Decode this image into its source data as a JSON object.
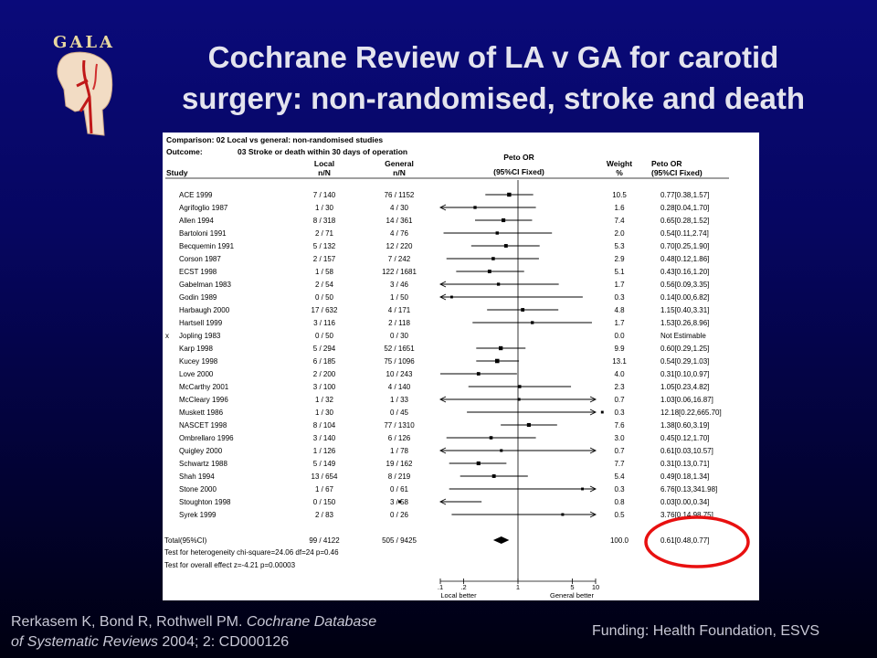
{
  "logo": {
    "text": "GALA"
  },
  "title": {
    "line1": "Cochrane Review of LA v GA for carotid",
    "line2": "surgery: non-randomised, stroke and death"
  },
  "colors": {
    "highlight": "#e81010",
    "title": "#e4e4ee",
    "footer": "#c8c8d6"
  },
  "table": {
    "comparison": "Comparison: 02 Local vs general:  non-randomised studies",
    "outcome_label": "Outcome:",
    "outcome": "03 Stroke or death within 30 days of operation",
    "headers": {
      "study": "Study",
      "local": "Local",
      "local_sub": "n/N",
      "general": "General",
      "general_sub": "n/N",
      "or": "Peto OR",
      "or_sub": "(95%CI Fixed)",
      "weight": "Weight",
      "weight_sub": "%",
      "or_ci": "Peto OR",
      "or_ci_sub": "(95%CI Fixed)"
    },
    "excluded_marker": "x",
    "total": {
      "label": "Total(95%CI)",
      "local": "99 / 4122",
      "general": "505 / 9425",
      "weight": "100.0",
      "ci": "0.61[0.48,0.77]",
      "heterogeneity": "Test for heterogeneity chi-square=24.06  df=24  p=0.46",
      "overall": "Test for overall effect  z=-4.21  p=0.00003"
    },
    "footer_left": "Local better",
    "footer_right": "General better"
  },
  "chart_data": {
    "type": "forest",
    "x_scale": "log",
    "xlim": [
      0.1,
      10
    ],
    "x_ticks": [
      ".1",
      ".2",
      "1",
      "5",
      "10"
    ],
    "x_tick_values": [
      0.1,
      0.2,
      1,
      5,
      10
    ],
    "reference_line": 1,
    "studies": [
      {
        "study": "ACE 1999",
        "local": "7 / 140",
        "general": "76 / 1152",
        "weight": "10.5",
        "ci": "0.77[0.38,1.57]",
        "or": 0.77,
        "lo": 0.38,
        "hi": 1.57
      },
      {
        "study": "Agrifoglio 1987",
        "local": "1 / 30",
        "general": "4 / 30",
        "weight": "1.6",
        "ci": "0.28[0.04,1.70]",
        "or": 0.28,
        "lo": 0.04,
        "hi": 1.7
      },
      {
        "study": "Allen 1994",
        "local": "8 / 318",
        "general": "14 / 361",
        "weight": "7.4",
        "ci": "0.65[0.28,1.52]",
        "or": 0.65,
        "lo": 0.28,
        "hi": 1.52
      },
      {
        "study": "Bartoloni 1991",
        "local": "2 / 71",
        "general": "4 / 76",
        "weight": "2.0",
        "ci": "0.54[0.11,2.74]",
        "or": 0.54,
        "lo": 0.11,
        "hi": 2.74
      },
      {
        "study": "Becquemin 1991",
        "local": "5 / 132",
        "general": "12 / 220",
        "weight": "5.3",
        "ci": "0.70[0.25,1.90]",
        "or": 0.7,
        "lo": 0.25,
        "hi": 1.9
      },
      {
        "study": "Corson 1987",
        "local": "2 / 157",
        "general": "7 / 242",
        "weight": "2.9",
        "ci": "0.48[0.12,1.86]",
        "or": 0.48,
        "lo": 0.12,
        "hi": 1.86
      },
      {
        "study": "ECST 1998",
        "local": "1 / 58",
        "general": "122 / 1681",
        "weight": "5.1",
        "ci": "0.43[0.16,1.20]",
        "or": 0.43,
        "lo": 0.16,
        "hi": 1.2
      },
      {
        "study": "Gabelman 1983",
        "local": "2 / 54",
        "general": "3 / 46",
        "weight": "1.7",
        "ci": "0.56[0.09,3.35]",
        "or": 0.56,
        "lo": 0.09,
        "hi": 3.35
      },
      {
        "study": "Godin 1989",
        "local": "0 / 50",
        "general": "1 / 50",
        "weight": "0.3",
        "ci": "0.14[0.00,6.82]",
        "or": 0.14,
        "lo": 0.0,
        "hi": 6.82
      },
      {
        "study": "Harbaugh 2000",
        "local": "17 / 632",
        "general": "4 / 171",
        "weight": "4.8",
        "ci": "1.15[0.40,3.31]",
        "or": 1.15,
        "lo": 0.4,
        "hi": 3.31
      },
      {
        "study": "Hartsell 1999",
        "local": "3 / 116",
        "general": "2 / 118",
        "weight": "1.7",
        "ci": "1.53[0.26,8.96]",
        "or": 1.53,
        "lo": 0.26,
        "hi": 8.96
      },
      {
        "study": "Jopling 1983",
        "local": "0 / 50",
        "general": "0 / 30",
        "weight": "0.0",
        "ci": "Not Estimable",
        "or": null,
        "lo": null,
        "hi": null,
        "excluded": true
      },
      {
        "study": "Karp 1998",
        "local": "5 / 294",
        "general": "52 / 1651",
        "weight": "9.9",
        "ci": "0.60[0.29,1.25]",
        "or": 0.6,
        "lo": 0.29,
        "hi": 1.25
      },
      {
        "study": "Kucey 1998",
        "local": "6 / 185",
        "general": "75 / 1096",
        "weight": "13.1",
        "ci": "0.54[0.29,1.03]",
        "or": 0.54,
        "lo": 0.29,
        "hi": 1.03
      },
      {
        "study": "Love 2000",
        "local": "2 / 200",
        "general": "10 / 243",
        "weight": "4.0",
        "ci": "0.31[0.10,0.97]",
        "or": 0.31,
        "lo": 0.1,
        "hi": 0.97
      },
      {
        "study": "McCarthy 2001",
        "local": "3 / 100",
        "general": "4 / 140",
        "weight": "2.3",
        "ci": "1.05[0.23,4.82]",
        "or": 1.05,
        "lo": 0.23,
        "hi": 4.82
      },
      {
        "study": "McCleary 1996",
        "local": "1 / 32",
        "general": "1 / 33",
        "weight": "0.7",
        "ci": "1.03[0.06,16.87]",
        "or": 1.03,
        "lo": 0.06,
        "hi": 16.87
      },
      {
        "study": "Muskett 1986",
        "local": "1 / 30",
        "general": "0 / 45",
        "weight": "0.3",
        "ci": "12.18[0.22,665.70]",
        "or": 12.18,
        "lo": 0.22,
        "hi": 665.7
      },
      {
        "study": "NASCET 1998",
        "local": "8 / 104",
        "general": "77 / 1310",
        "weight": "7.6",
        "ci": "1.38[0.60,3.19]",
        "or": 1.38,
        "lo": 0.6,
        "hi": 3.19
      },
      {
        "study": "Ombrellaro 1996",
        "local": "3 / 140",
        "general": "6 / 126",
        "weight": "3.0",
        "ci": "0.45[0.12,1.70]",
        "or": 0.45,
        "lo": 0.12,
        "hi": 1.7
      },
      {
        "study": "Quigley 2000",
        "local": "1 / 126",
        "general": "1 / 78",
        "weight": "0.7",
        "ci": "0.61[0.03,10.57]",
        "or": 0.61,
        "lo": 0.03,
        "hi": 10.57
      },
      {
        "study": "Schwartz 1988",
        "local": "5 / 149",
        "general": "19 / 162",
        "weight": "7.7",
        "ci": "0.31[0.13,0.71]",
        "or": 0.31,
        "lo": 0.13,
        "hi": 0.71
      },
      {
        "study": "Shah 1994",
        "local": "13 / 654",
        "general": "8 / 219",
        "weight": "5.4",
        "ci": "0.49[0.18,1.34]",
        "or": 0.49,
        "lo": 0.18,
        "hi": 1.34
      },
      {
        "study": "Stone 2000",
        "local": "1 / 67",
        "general": "0 / 61",
        "weight": "0.3",
        "ci": "6.76[0.13,341.98]",
        "or": 6.76,
        "lo": 0.13,
        "hi": 341.98
      },
      {
        "study": "Stoughton 1998",
        "local": "0 / 150",
        "general": "3 / 58",
        "weight": "0.8",
        "ci": "0.03[0.00,0.34]",
        "or": 0.03,
        "lo": 0.0,
        "hi": 0.34
      },
      {
        "study": "Syrek 1999",
        "local": "2 / 83",
        "general": "0 / 26",
        "weight": "0.5",
        "ci": "3.76[0.14,98.75]",
        "or": 3.76,
        "lo": 0.14,
        "hi": 98.75
      }
    ],
    "pooled": {
      "or": 0.61,
      "lo": 0.48,
      "hi": 0.77
    }
  },
  "citation": {
    "authors": "Rerkasem K, Bond R, Rothwell PM. ",
    "journal_part1": "Cochrane Database",
    "journal_part2": "of Systematic Reviews",
    "rest": " 2004; 2: CD000126"
  },
  "funding": "Funding: Health Foundation, ESVS"
}
